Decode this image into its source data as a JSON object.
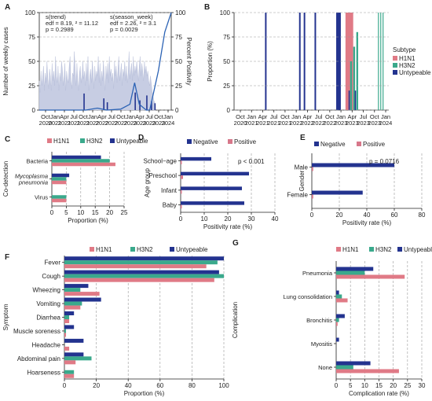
{
  "colors": {
    "h1n1": "#e07a86",
    "h3n2": "#3aa98c",
    "untypeable": "#23338f",
    "negative": "#23338f",
    "positive": "#d7778a",
    "histfill": "#c7cde3",
    "line": "#2c63b5"
  },
  "charts": [
    {
      "panel": "A",
      "type": "area",
      "ylabel": "Number of weekly cases",
      "y2label": "Percent Positivity",
      "ylim": [
        0,
        100
      ],
      "y2lim": [
        0,
        100
      ],
      "xticks": [
        "Oct\n2020",
        "Jan\n2021",
        "Apr\n2021",
        "Jul\n2021",
        "Oct\n2021",
        "Jan\n2022",
        "Apr\n2022",
        "Jul\n2022",
        "Oct\n2022",
        "Jan\n2023",
        "Apr\n2023",
        "Jul\n2023",
        "Oct\n2023",
        "Jan\n2024"
      ],
      "yticks": [
        0,
        25,
        50,
        75,
        100
      ],
      "annotations": [
        [
          "s(trend)",
          "edf = 8.19, ² = 11.12",
          "p = 0.2989"
        ],
        [
          "s(season_week)",
          "edf = 2.26, ² = 3.1",
          "p = 0.0029"
        ]
      ],
      "weekly_cases": [
        30,
        18,
        40,
        25,
        35,
        45,
        20,
        38,
        28,
        50,
        32,
        22,
        42,
        35,
        20,
        48,
        30,
        40,
        25,
        55,
        35,
        28,
        45,
        20,
        38,
        30,
        50,
        42,
        25,
        35,
        48,
        20,
        40,
        32,
        28,
        45,
        55,
        30,
        22,
        38,
        35,
        60,
        42,
        25,
        48,
        30,
        20,
        38,
        45,
        28,
        35,
        50,
        32,
        40,
        25,
        48,
        30,
        55,
        20,
        35,
        42,
        28,
        50,
        38,
        22,
        45,
        30,
        40,
        35,
        55,
        28,
        48,
        25,
        40,
        30,
        50,
        38,
        20,
        45,
        32,
        48,
        28,
        55,
        35,
        42,
        30,
        38,
        22,
        50,
        35,
        45,
        28,
        40,
        55,
        30,
        38,
        48,
        25,
        42,
        35,
        50,
        30,
        45,
        28,
        38,
        60,
        32,
        40,
        48,
        30,
        55,
        35,
        45,
        38,
        50,
        40,
        30,
        45,
        55,
        35,
        48,
        40,
        30,
        50,
        38,
        45,
        35,
        40,
        30,
        25,
        35,
        28,
        20,
        15,
        10,
        8,
        5
      ],
      "positivity": [
        0,
        0,
        0,
        0,
        0,
        0,
        0,
        0,
        0,
        0,
        0,
        0,
        0,
        0,
        0,
        0,
        0,
        0,
        0,
        0,
        0,
        0,
        0,
        0,
        0,
        0,
        0,
        0,
        0,
        0,
        0,
        0,
        0,
        0,
        0,
        0,
        0,
        0,
        0,
        0,
        0,
        0,
        0,
        0,
        0,
        0,
        0,
        0,
        0,
        0,
        0,
        0,
        0,
        0,
        0,
        0,
        0,
        0,
        0,
        0,
        0,
        0,
        0,
        0,
        0,
        0,
        0,
        0,
        0,
        0,
        0,
        0,
        0,
        0,
        0,
        0,
        0,
        0,
        0,
        0,
        0,
        0,
        0,
        0,
        0,
        0,
        0,
        0,
        0,
        0,
        0,
        0,
        0,
        0,
        0,
        0,
        0,
        0,
        0,
        0,
        0,
        0,
        0,
        0,
        0,
        0,
        0,
        0,
        0,
        0,
        0,
        0,
        0,
        0,
        0,
        0,
        0,
        0,
        0,
        0,
        0,
        0,
        0,
        0,
        0,
        0,
        0,
        0,
        0,
        0,
        0,
        0,
        0,
        0,
        0,
        0,
        0,
        0,
        100
      ],
      "spikes": [
        [
          0.38,
          17
        ],
        [
          0.55,
          12
        ],
        [
          0.58,
          8
        ],
        [
          0.82,
          18
        ],
        [
          0.86,
          10
        ],
        [
          0.92,
          15
        ],
        [
          0.96,
          9
        ],
        [
          0.99,
          7
        ]
      ]
    },
    {
      "panel": "B",
      "type": "bar",
      "ylabel": "Proportion (%)",
      "ylim": [
        0,
        100
      ],
      "yticks": [
        0,
        25,
        50,
        75,
        100
      ],
      "xticks": [
        "Oct\n2020",
        "Jan\n2021",
        "Apr\n2021",
        "Jul\n2021",
        "Oct\n2021",
        "Jan\n2022",
        "Apr\n2022",
        "Jul\n2022",
        "Oct\n2022",
        "Jan\n2023",
        "Apr\n2023",
        "Jul\n2023",
        "Oct\n2023",
        "Jan\n2024"
      ],
      "legend_title": "Subtype",
      "legend": [
        "H1N1",
        "H3N2",
        "Untypeable"
      ]
    },
    {
      "panel": "C",
      "type": "bar",
      "orientation": "horizontal",
      "xlabel": "Proportion (%)",
      "ylabel": "Co-detection",
      "xlim": [
        0,
        25
      ],
      "xticks": [
        0,
        5,
        10,
        15,
        20,
        25
      ],
      "legend": [
        "H1N1",
        "H3N2",
        "Untypeable"
      ],
      "categories": [
        "Bacteria",
        "Mycoplasma\npneumonia",
        "Virus"
      ],
      "series": [
        {
          "name": "H1N1",
          "values": [
            22,
            5,
            5
          ]
        },
        {
          "name": "H3N2",
          "values": [
            20,
            5,
            5
          ]
        },
        {
          "name": "Untypeable",
          "values": [
            17,
            6,
            0
          ]
        }
      ]
    },
    {
      "panel": "D",
      "type": "bar",
      "orientation": "horizontal",
      "xlabel": "Positivity rate (%)",
      "ylabel": "Age group",
      "xlim": [
        0,
        40
      ],
      "xticks": [
        0,
        10,
        20,
        30,
        40
      ],
      "legend": [
        "Negative",
        "Positive"
      ],
      "annotation": "p < 0.001",
      "categories": [
        "School−age",
        "Preschool",
        "Infant",
        "Baby"
      ],
      "series": [
        {
          "name": "Negative",
          "values": [
            13,
            29,
            26,
            27
          ]
        },
        {
          "name": "Positive",
          "values": [
            0.5,
            1,
            0.5,
            0.5
          ]
        }
      ]
    },
    {
      "panel": "E",
      "type": "bar",
      "orientation": "horizontal",
      "xlabel": "Positivity rate (%)",
      "ylabel": "Gender",
      "xlim": [
        0,
        80
      ],
      "xticks": [
        0,
        20,
        40,
        60,
        80
      ],
      "legend": [
        "Negative",
        "Positive"
      ],
      "annotation": "p = 0.0716",
      "categories": [
        "Male",
        "Female"
      ],
      "series": [
        {
          "name": "Negative",
          "values": [
            60,
            37
          ]
        },
        {
          "name": "Positive",
          "values": [
            1,
            1
          ]
        }
      ]
    },
    {
      "panel": "F",
      "type": "bar",
      "orientation": "horizontal",
      "xlabel": "Proportion (%)",
      "ylabel": "Symptom",
      "xlim": [
        0,
        100
      ],
      "xticks": [
        0,
        20,
        40,
        60,
        80,
        100
      ],
      "legend": [
        "H1N1",
        "H3N2",
        "Untypeable"
      ],
      "categories": [
        "Fever",
        "Cough",
        "Wheezing",
        "Vomiting",
        "Diarrhea",
        "Muscle soreness",
        "Headache",
        "Abdominal pain",
        "Hoarseness"
      ],
      "series": [
        {
          "name": "H1N1",
          "values": [
            89,
            94,
            22,
            10,
            3,
            1,
            3,
            7,
            6
          ]
        },
        {
          "name": "H3N2",
          "values": [
            96,
            100,
            10,
            11,
            3,
            1,
            0,
            17,
            6
          ]
        },
        {
          "name": "Untypeable",
          "values": [
            100,
            97,
            15,
            23,
            6,
            6,
            12,
            12,
            0
          ]
        }
      ]
    },
    {
      "panel": "G",
      "type": "bar",
      "orientation": "horizontal",
      "xlabel": "Complication rate (%)",
      "ylabel": "Complication",
      "xlim": [
        0,
        30
      ],
      "xticks": [
        0,
        5,
        10,
        15,
        20,
        25,
        30
      ],
      "legend": [
        "H1N1",
        "H3N2",
        "Untypeable"
      ],
      "categories": [
        "Pneumonia",
        "Lung consolidation",
        "Bronchitis",
        "Myositis",
        "None"
      ],
      "series": [
        {
          "name": "H1N1",
          "values": [
            24,
            4,
            0.5,
            0,
            22
          ]
        },
        {
          "name": "H3N2",
          "values": [
            10,
            2,
            1,
            0,
            6
          ]
        },
        {
          "name": "Untypeable",
          "values": [
            13,
            1,
            3,
            1,
            12
          ]
        }
      ]
    }
  ]
}
